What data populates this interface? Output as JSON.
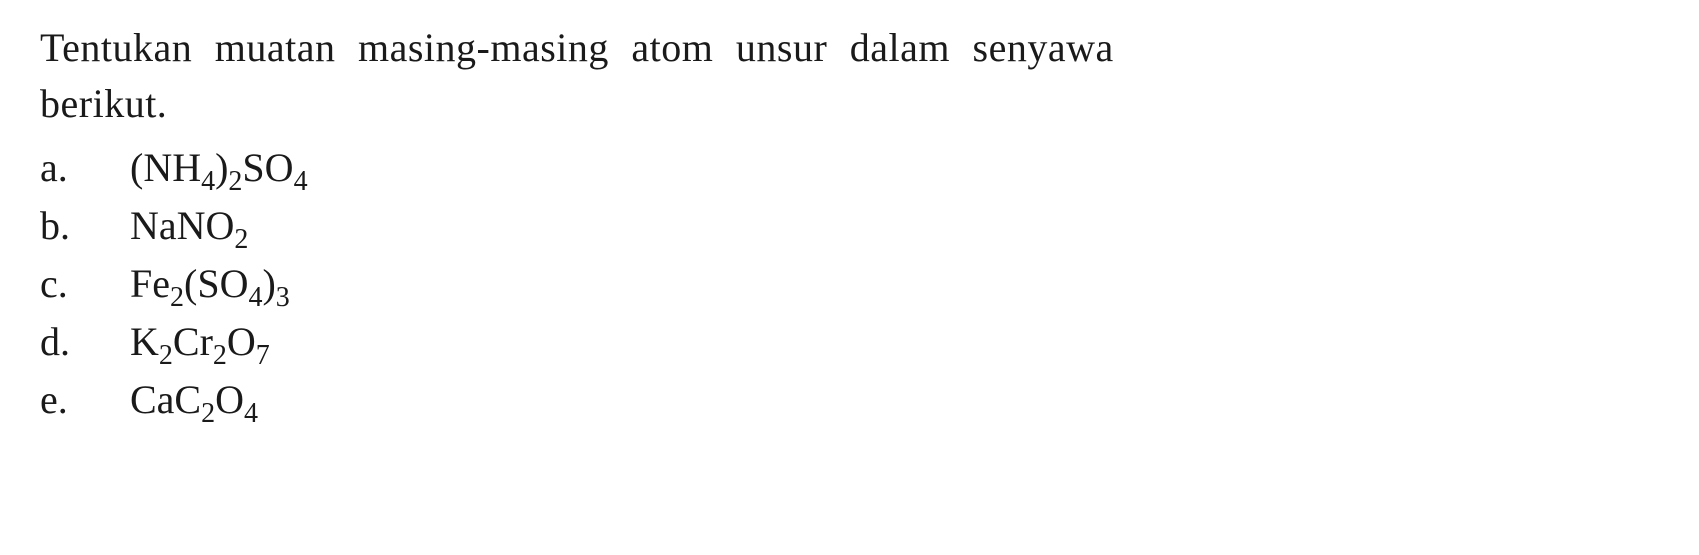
{
  "colors": {
    "background": "#ffffff",
    "text": "#1a1a1a"
  },
  "typography": {
    "font_family": "Georgia, Times New Roman, serif",
    "font_size_pt": 30,
    "line_height": 1.4
  },
  "question": {
    "line1": "Tentukan muatan masing-masing atom unsur dalam senyawa",
    "line2": "berikut."
  },
  "items": [
    {
      "label": "a.",
      "formula_parts": [
        {
          "t": "text",
          "v": "(NH"
        },
        {
          "t": "sub",
          "v": "4"
        },
        {
          "t": "text",
          "v": ")"
        },
        {
          "t": "sub",
          "v": "2"
        },
        {
          "t": "text",
          "v": "SO"
        },
        {
          "t": "sub",
          "v": "4"
        }
      ]
    },
    {
      "label": "b.",
      "formula_parts": [
        {
          "t": "text",
          "v": "NaNO"
        },
        {
          "t": "sub",
          "v": "2"
        }
      ]
    },
    {
      "label": "c.",
      "formula_parts": [
        {
          "t": "text",
          "v": "Fe"
        },
        {
          "t": "sub",
          "v": "2"
        },
        {
          "t": "text",
          "v": "(SO"
        },
        {
          "t": "sub",
          "v": "4"
        },
        {
          "t": "text",
          "v": ")"
        },
        {
          "t": "sub",
          "v": "3"
        }
      ]
    },
    {
      "label": "d.",
      "formula_parts": [
        {
          "t": "text",
          "v": "K"
        },
        {
          "t": "sub",
          "v": "2"
        },
        {
          "t": "text",
          "v": "Cr"
        },
        {
          "t": "sub",
          "v": "2"
        },
        {
          "t": "text",
          "v": "O"
        },
        {
          "t": "sub",
          "v": "7"
        }
      ]
    },
    {
      "label": "e.",
      "formula_parts": [
        {
          "t": "text",
          "v": "CaC"
        },
        {
          "t": "sub",
          "v": "2"
        },
        {
          "t": "text",
          "v": "O"
        },
        {
          "t": "sub",
          "v": "4"
        }
      ]
    }
  ]
}
